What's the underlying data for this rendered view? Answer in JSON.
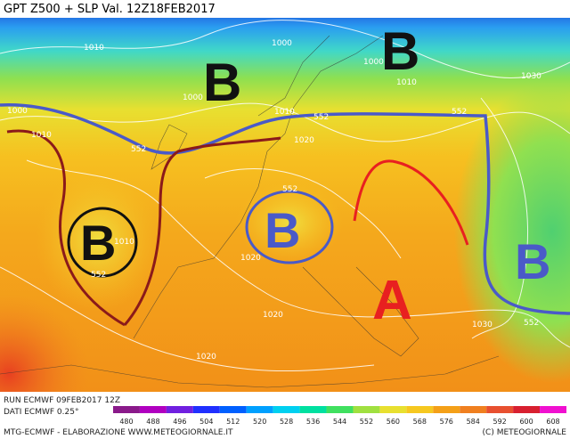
{
  "header": {
    "title": "GPT Z500 + SLP Val. 12Z18FEB2017"
  },
  "map": {
    "systems": [
      "B",
      "B",
      "B",
      "B",
      "B",
      "A"
    ],
    "pressure_labels": [
      "1010",
      "1000",
      "1000",
      "1000",
      "1000",
      "1010",
      "1010",
      "1010",
      "1010",
      "1030",
      "1020",
      "1020",
      "1020",
      "1020",
      "1030"
    ],
    "contour_labels": [
      "552",
      "552",
      "552",
      "552",
      "552",
      "552"
    ]
  },
  "colorbar": {
    "ticks": [
      480,
      488,
      496,
      504,
      512,
      520,
      528,
      536,
      544,
      552,
      560,
      568,
      576,
      584,
      592,
      600,
      608
    ]
  },
  "footer": {
    "run": "RUN ECMWF 09FEB2017 12Z",
    "data": "DATI ECMWF 0.25°",
    "credit": "MTG-ECMWF - ELABORAZIONE WWW.METEOGIORNALE.IT",
    "copyright": "(C) METEOGIORNALE"
  }
}
